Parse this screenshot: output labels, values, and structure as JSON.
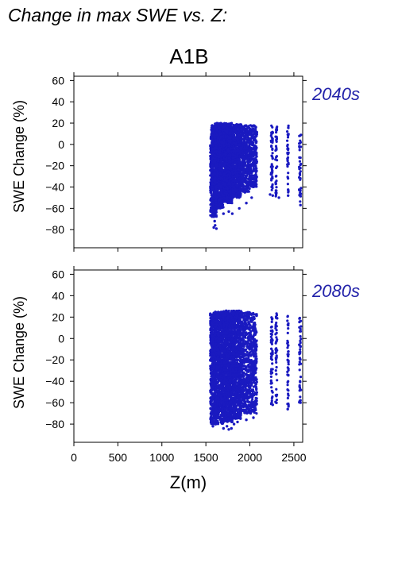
{
  "page": {
    "heading": "Change in max SWE vs. Z:",
    "scenario": "A1B",
    "xlabel": "Z(m)",
    "ylabel": "SWE Change (%)"
  },
  "colors": {
    "points": "#1a1ac0",
    "period_label": "#2222aa",
    "axis": "#000000"
  },
  "chart_data": [
    {
      "type": "scatter",
      "period": "2040s",
      "xlim": [
        0,
        2600
      ],
      "ylim": [
        -97,
        64
      ],
      "xticks": [
        0,
        500,
        1000,
        1500,
        2000,
        2500
      ],
      "yticks": [
        60,
        40,
        20,
        0,
        -20,
        -40,
        -60,
        -80
      ],
      "grid": false,
      "clusters": [
        {
          "x_range": [
            1550,
            1620
          ],
          "y_range": [
            -68,
            18
          ],
          "n": 500
        },
        {
          "x_range": [
            1600,
            1700
          ],
          "y_range": [
            -60,
            20
          ],
          "n": 900
        },
        {
          "x_range": [
            1700,
            1800
          ],
          "y_range": [
            -55,
            20
          ],
          "n": 900
        },
        {
          "x_range": [
            1800,
            1900
          ],
          "y_range": [
            -50,
            19
          ],
          "n": 700
        },
        {
          "x_range": [
            1900,
            2000
          ],
          "y_range": [
            -45,
            18
          ],
          "n": 400
        },
        {
          "x_range": [
            2000,
            2080
          ],
          "y_range": [
            -40,
            18
          ],
          "n": 260
        },
        {
          "x_range": [
            2240,
            2260
          ],
          "y_range": [
            -48,
            18
          ],
          "n": 50
        },
        {
          "x_range": [
            2290,
            2310
          ],
          "y_range": [
            -50,
            18
          ],
          "n": 40
        },
        {
          "x_range": [
            2425,
            2440
          ],
          "y_range": [
            -45,
            18
          ],
          "n": 40
        },
        {
          "x_range": [
            2560,
            2580
          ],
          "y_range": [
            -58,
            13
          ],
          "n": 40
        }
      ],
      "points": [
        [
          1590,
          -78
        ],
        [
          1605,
          -76
        ],
        [
          1620,
          -79
        ],
        [
          1600,
          -72
        ],
        [
          1700,
          -65
        ],
        [
          1760,
          -63
        ],
        [
          1800,
          -65
        ],
        [
          1880,
          -60
        ],
        [
          1960,
          -55
        ],
        [
          2020,
          -50
        ],
        [
          2230,
          -47
        ],
        [
          2260,
          -48
        ],
        [
          2330,
          -50
        ],
        [
          2435,
          -48
        ],
        [
          2575,
          -57
        ]
      ]
    },
    {
      "type": "scatter",
      "period": "2080s",
      "xlim": [
        0,
        2600
      ],
      "ylim": [
        -97,
        64
      ],
      "xticks": [
        0,
        500,
        1000,
        1500,
        2000,
        2500
      ],
      "yticks": [
        60,
        40,
        20,
        0,
        -20,
        -40,
        -60,
        -80
      ],
      "grid": false,
      "clusters": [
        {
          "x_range": [
            1550,
            1620
          ],
          "y_range": [
            -80,
            24
          ],
          "n": 550
        },
        {
          "x_range": [
            1600,
            1700
          ],
          "y_range": [
            -80,
            25
          ],
          "n": 950
        },
        {
          "x_range": [
            1700,
            1800
          ],
          "y_range": [
            -78,
            26
          ],
          "n": 950
        },
        {
          "x_range": [
            1800,
            1900
          ],
          "y_range": [
            -75,
            26
          ],
          "n": 750
        },
        {
          "x_range": [
            1900,
            2000
          ],
          "y_range": [
            -70,
            25
          ],
          "n": 450
        },
        {
          "x_range": [
            2000,
            2080
          ],
          "y_range": [
            -70,
            24
          ],
          "n": 300
        },
        {
          "x_range": [
            2240,
            2260
          ],
          "y_range": [
            -62,
            24
          ],
          "n": 55
        },
        {
          "x_range": [
            2290,
            2310
          ],
          "y_range": [
            -62,
            24
          ],
          "n": 45
        },
        {
          "x_range": [
            2425,
            2440
          ],
          "y_range": [
            -66,
            22
          ],
          "n": 45
        },
        {
          "x_range": [
            2560,
            2580
          ],
          "y_range": [
            -62,
            23
          ],
          "n": 45
        }
      ],
      "points": [
        [
          1580,
          -82
        ],
        [
          1610,
          -80
        ],
        [
          1700,
          -84
        ],
        [
          1740,
          -82
        ],
        [
          1760,
          -85
        ],
        [
          1790,
          -84
        ],
        [
          1820,
          -80
        ],
        [
          1860,
          -78
        ],
        [
          1960,
          -76
        ],
        [
          2040,
          -74
        ],
        [
          2260,
          -62
        ],
        [
          2300,
          -60
        ],
        [
          2430,
          -66
        ],
        [
          2575,
          -60
        ]
      ]
    }
  ]
}
